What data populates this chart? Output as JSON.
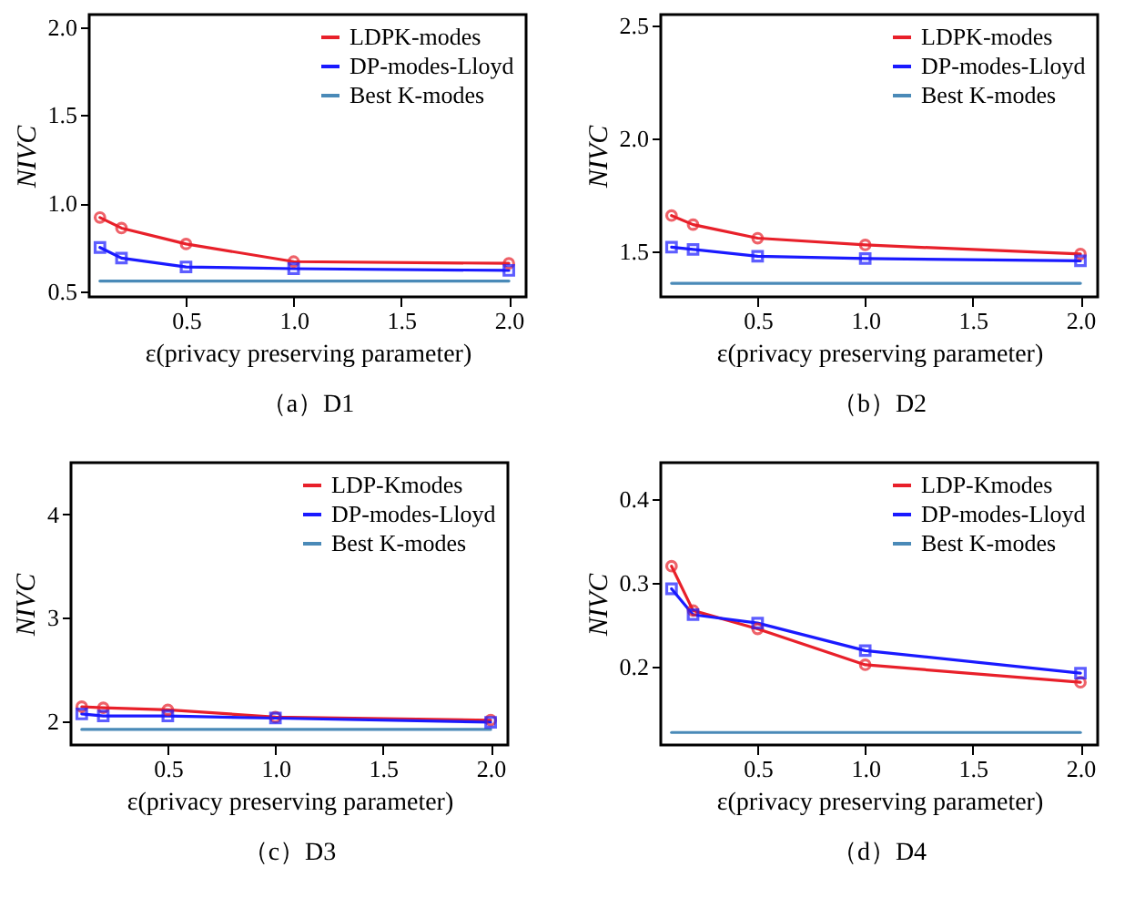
{
  "chart_data": [
    {
      "type": "line",
      "title": "（a）D1",
      "xlabel": "ε(privacy preserving parameter)",
      "ylabel": "NIVC",
      "xlim": [
        0.05,
        2.08
      ],
      "xticks": [
        {
          "value": 0.5,
          "label": "0.5"
        },
        {
          "value": 1,
          "label": "1.0"
        },
        {
          "value": 1.5,
          "label": "1.5"
        },
        {
          "value": 2,
          "label": "2.0"
        }
      ],
      "ylim": [
        0.47,
        2.07
      ],
      "yticks": [
        {
          "value": 0.5,
          "label": "0.5"
        },
        {
          "value": 1,
          "label": "1.0"
        },
        {
          "value": 1.5,
          "label": "1.5"
        },
        {
          "value": 2,
          "label": "2.0"
        }
      ],
      "grid": false,
      "legend": "top right",
      "series": [
        {
          "name": "LDPK-modes",
          "color": "#e8202a",
          "marker": "circle",
          "x": [
            0.1,
            0.2,
            0.5,
            1.0,
            2.0
          ],
          "values": [
            0.92,
            0.86,
            0.77,
            0.67,
            0.66
          ]
        },
        {
          "name": "DP-modes-Lloyd",
          "color": "#1a1aff",
          "marker": "square",
          "x": [
            0.1,
            0.2,
            0.5,
            1.0,
            2.0
          ],
          "values": [
            0.75,
            0.69,
            0.64,
            0.63,
            0.62
          ]
        },
        {
          "name": "Best K-modes",
          "color": "#4a8ab8",
          "marker": "none",
          "x": [
            0.1,
            2.0
          ],
          "values": [
            0.56,
            0.56
          ]
        }
      ]
    },
    {
      "type": "line",
      "title": "（b）D2",
      "xlabel": "ε(privacy preserving parameter)",
      "ylabel": "NIVC",
      "xlim": [
        0.05,
        2.08
      ],
      "xticks": [
        {
          "value": 0.5,
          "label": "0.5"
        },
        {
          "value": 1,
          "label": "1.0"
        },
        {
          "value": 1.5,
          "label": "1.5"
        },
        {
          "value": 2,
          "label": "2.0"
        }
      ],
      "ylim": [
        1.3,
        2.55
      ],
      "yticks": [
        1.5,
        {
          "value": 2,
          "label": "2.0"
        },
        2.5
      ],
      "grid": false,
      "legend": "top right",
      "series": [
        {
          "name": "LDPK-modes",
          "color": "#e8202a",
          "marker": "circle",
          "x": [
            0.1,
            0.2,
            0.5,
            1.0,
            2.0
          ],
          "values": [
            1.66,
            1.62,
            1.56,
            1.53,
            1.49
          ]
        },
        {
          "name": "DP-modes-Lloyd",
          "color": "#1a1aff",
          "marker": "square",
          "x": [
            0.1,
            0.2,
            0.5,
            1.0,
            2.0
          ],
          "values": [
            1.52,
            1.51,
            1.48,
            1.47,
            1.46
          ]
        },
        {
          "name": "Best K-modes",
          "color": "#4a8ab8",
          "marker": "none",
          "x": [
            0.1,
            2.0
          ],
          "values": [
            1.36,
            1.36
          ]
        }
      ]
    },
    {
      "type": "line",
      "title": "（c）D3",
      "xlabel": "ε(privacy preserving parameter)",
      "ylabel": "NIVC",
      "xlim": [
        0.05,
        2.08
      ],
      "xticks": [
        {
          "value": 0.5,
          "label": "0.5"
        },
        {
          "value": 1,
          "label": "1.0"
        },
        {
          "value": 1.5,
          "label": "1.5"
        },
        {
          "value": 2,
          "label": "2.0"
        }
      ],
      "ylim": [
        1.77,
        4.5
      ],
      "yticks": [
        2,
        3,
        4
      ],
      "grid": false,
      "legend": "top right",
      "series": [
        {
          "name": "LDP-Kmodes",
          "color": "#e8202a",
          "marker": "circle",
          "x": [
            0.1,
            0.2,
            0.5,
            1.0,
            2.0
          ],
          "values": [
            2.14,
            2.13,
            2.11,
            2.04,
            2.01
          ]
        },
        {
          "name": "DP-modes-Lloyd",
          "color": "#1a1aff",
          "marker": "square",
          "x": [
            0.1,
            0.2,
            0.5,
            1.0,
            2.0
          ],
          "values": [
            2.07,
            2.05,
            2.05,
            2.03,
            1.99
          ]
        },
        {
          "name": "Best K-modes",
          "color": "#4a8ab8",
          "marker": "none",
          "x": [
            0.1,
            2.0
          ],
          "values": [
            1.92,
            1.92
          ]
        }
      ]
    },
    {
      "type": "line",
      "title": "（d）D4",
      "xlabel": "ε(privacy preserving parameter)",
      "ylabel": "NIVC",
      "xlim": [
        0.05,
        2.08
      ],
      "xticks": [
        {
          "value": 0.5,
          "label": "0.5"
        },
        {
          "value": 1,
          "label": "1.0"
        },
        {
          "value": 1.5,
          "label": "1.5"
        },
        {
          "value": 2,
          "label": "2.0"
        }
      ],
      "ylim": [
        0.106,
        0.444
      ],
      "yticks": [
        0.2,
        0.3,
        0.4
      ],
      "grid": false,
      "legend": "top right",
      "series": [
        {
          "name": "LDP-Kmodes",
          "color": "#e8202a",
          "marker": "circle",
          "x": [
            0.1,
            0.2,
            0.5,
            1.0,
            2.0
          ],
          "values": [
            0.32,
            0.267,
            0.245,
            0.202,
            0.181
          ]
        },
        {
          "name": "DP-modes-Lloyd",
          "color": "#1a1aff",
          "marker": "square",
          "x": [
            0.1,
            0.2,
            0.5,
            1.0,
            2.0
          ],
          "values": [
            0.293,
            0.262,
            0.252,
            0.219,
            0.192
          ]
        },
        {
          "name": "Best K-modes",
          "color": "#4a8ab8",
          "marker": "none",
          "x": [
            0.1,
            2.0
          ],
          "values": [
            0.121,
            0.121
          ]
        }
      ]
    }
  ]
}
